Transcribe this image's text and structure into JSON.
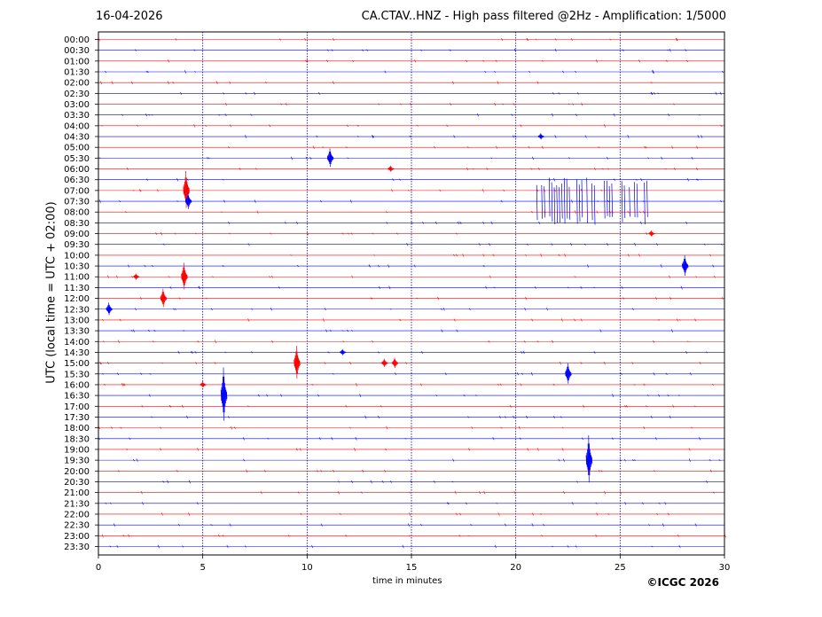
{
  "header": {
    "date": "16-04-2026",
    "title": "CA.CTAV..HNZ - High pass filtered @2Hz - Amplification: 1/5000"
  },
  "footer": {
    "credit": "©ICGC 2026"
  },
  "colors": {
    "trace_a": "#ff0000",
    "trace_b": "#0000ff",
    "grid": "#000080",
    "axis": "#000000"
  },
  "chart_data": {
    "type": "line",
    "xlabel": "time in minutes",
    "ylabel": "UTC (local time = UTC + 02:00)",
    "xlim": [
      0,
      30
    ],
    "xticks": [
      0,
      5,
      10,
      15,
      20,
      25,
      30
    ],
    "vertical_grid_at": [
      5,
      10,
      15,
      20,
      25
    ],
    "grid": true,
    "row_labels": [
      "00:00",
      "00:30",
      "01:00",
      "01:30",
      "02:00",
      "02:30",
      "03:00",
      "03:30",
      "04:00",
      "04:30",
      "05:00",
      "05:30",
      "06:00",
      "06:30",
      "07:00",
      "07:30",
      "08:00",
      "08:30",
      "09:00",
      "09:30",
      "10:00",
      "10:30",
      "11:00",
      "11:30",
      "12:00",
      "12:30",
      "13:00",
      "13:30",
      "14:00",
      "14:30",
      "15:00",
      "15:30",
      "16:00",
      "16:30",
      "17:00",
      "17:30",
      "18:00",
      "18:30",
      "19:00",
      "19:30",
      "20:00",
      "20:30",
      "21:00",
      "21:30",
      "22:00",
      "22:30",
      "23:00",
      "23:30"
    ],
    "trace_color_cycle": [
      "red",
      "blue"
    ],
    "events": [
      {
        "row": "05:30",
        "minute": 11.1,
        "amplitude": 0.9
      },
      {
        "row": "07:00",
        "minute": 4.2,
        "amplitude": 1.8
      },
      {
        "row": "07:30",
        "minute": 4.3,
        "amplitude": 0.8
      },
      {
        "row": "07:30",
        "minute": 21.0,
        "amplitude": 2.2,
        "end_minute": 26.5,
        "burst": true
      },
      {
        "row": "10:30",
        "minute": 28.1,
        "amplitude": 1.0
      },
      {
        "row": "11:00",
        "minute": 4.1,
        "amplitude": 1.3
      },
      {
        "row": "11:00",
        "minute": 1.8,
        "amplitude": 0.3
      },
      {
        "row": "12:00",
        "minute": 3.1,
        "amplitude": 0.9
      },
      {
        "row": "12:30",
        "minute": 0.5,
        "amplitude": 0.6
      },
      {
        "row": "15:00",
        "minute": 9.5,
        "amplitude": 1.6
      },
      {
        "row": "15:00",
        "minute": 13.7,
        "amplitude": 0.4
      },
      {
        "row": "15:00",
        "minute": 14.2,
        "amplitude": 0.5
      },
      {
        "row": "15:30",
        "minute": 22.5,
        "amplitude": 1.0
      },
      {
        "row": "16:00",
        "minute": 5.0,
        "amplitude": 0.3
      },
      {
        "row": "16:30",
        "minute": 6.0,
        "amplitude": 2.6
      },
      {
        "row": "19:30",
        "minute": 23.5,
        "amplitude": 2.3
      },
      {
        "row": "04:30",
        "minute": 21.2,
        "amplitude": 0.3
      },
      {
        "row": "06:00",
        "minute": 14.0,
        "amplitude": 0.3
      },
      {
        "row": "09:00",
        "minute": 26.5,
        "amplitude": 0.3
      },
      {
        "row": "14:30",
        "minute": 11.7,
        "amplitude": 0.3
      }
    ]
  }
}
